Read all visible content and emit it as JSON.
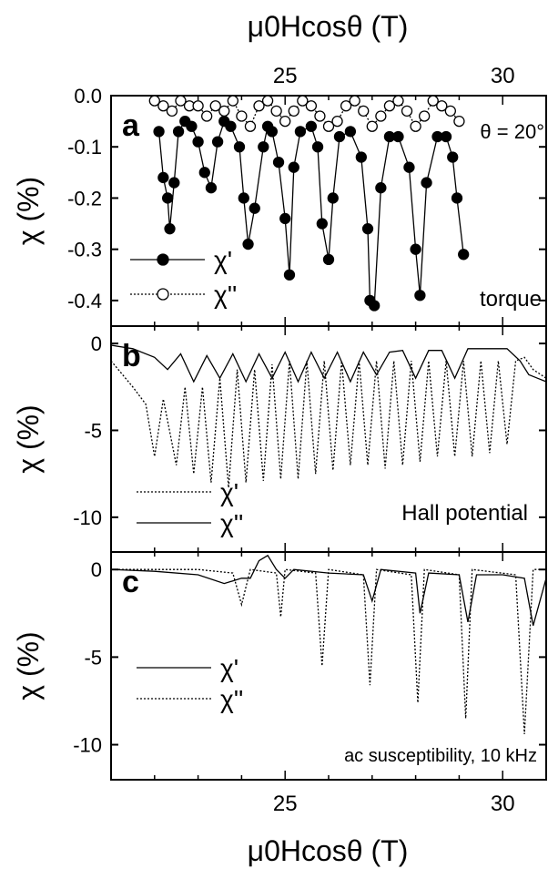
{
  "figure": {
    "top_axis_title": "μ0Hcosθ (T)",
    "bottom_axis_title": "μ0Hcosθ (T)"
  },
  "chart_data": [
    {
      "type": "scatter",
      "panel_label": "a",
      "annotation": "torque",
      "angle_label": "θ = 20°",
      "x_axis_position": "top",
      "xlabel": "μ0Hcosθ (T)",
      "ylabel": "χ (%)",
      "xlim": [
        21,
        31
      ],
      "ylim": [
        -0.45,
        0.0
      ],
      "x_ticks": [
        25,
        30
      ],
      "y_ticks": [
        0.0,
        -0.1,
        -0.2,
        -0.3,
        -0.4
      ],
      "y_tick_labels": [
        "0.0",
        "-0.1",
        "-0.2",
        "-0.3",
        "-0.4"
      ],
      "legend": [
        {
          "label": "χ'",
          "marker": "filled-circle",
          "line": "solid"
        },
        {
          "label": "χ''",
          "marker": "open-circle",
          "line": "dotted"
        }
      ],
      "series": [
        {
          "name": "χ'",
          "x": [
            22.1,
            22.2,
            22.3,
            22.35,
            22.45,
            22.55,
            22.7,
            22.85,
            23.0,
            23.15,
            23.3,
            23.45,
            23.6,
            23.75,
            23.95,
            24.05,
            24.15,
            24.3,
            24.5,
            24.6,
            24.7,
            24.85,
            25.0,
            25.1,
            25.2,
            25.35,
            25.6,
            25.75,
            25.85,
            26.0,
            26.1,
            26.25,
            26.5,
            26.75,
            26.9,
            26.95,
            27.05,
            27.2,
            27.4,
            27.6,
            27.85,
            28.0,
            28.1,
            28.25,
            28.5,
            28.7,
            28.85,
            28.95,
            29.1
          ],
          "y": [
            -0.07,
            -0.16,
            -0.2,
            -0.26,
            -0.17,
            -0.07,
            -0.05,
            -0.06,
            -0.09,
            -0.15,
            -0.18,
            -0.09,
            -0.05,
            -0.06,
            -0.1,
            -0.2,
            -0.29,
            -0.22,
            -0.1,
            -0.06,
            -0.07,
            -0.13,
            -0.24,
            -0.35,
            -0.14,
            -0.07,
            -0.06,
            -0.1,
            -0.25,
            -0.32,
            -0.2,
            -0.08,
            -0.07,
            -0.12,
            -0.26,
            -0.4,
            -0.41,
            -0.18,
            -0.08,
            -0.08,
            -0.14,
            -0.3,
            -0.39,
            -0.17,
            -0.08,
            -0.08,
            -0.12,
            -0.2,
            -0.31
          ]
        },
        {
          "name": "χ''",
          "x": [
            22.0,
            22.2,
            22.4,
            22.6,
            22.8,
            23.0,
            23.2,
            23.4,
            23.6,
            23.8,
            24.0,
            24.2,
            24.4,
            24.6,
            24.8,
            25.0,
            25.2,
            25.4,
            25.6,
            25.8,
            26.0,
            26.2,
            26.4,
            26.6,
            26.8,
            27.0,
            27.2,
            27.4,
            27.6,
            27.8,
            28.0,
            28.2,
            28.4,
            28.6,
            28.8,
            29.0
          ],
          "y": [
            -0.01,
            -0.02,
            -0.03,
            -0.01,
            -0.02,
            -0.02,
            -0.04,
            -0.02,
            -0.03,
            -0.01,
            -0.04,
            -0.06,
            -0.02,
            -0.01,
            -0.03,
            -0.05,
            -0.03,
            -0.01,
            -0.02,
            -0.04,
            -0.06,
            -0.05,
            -0.02,
            -0.01,
            -0.03,
            -0.06,
            -0.04,
            -0.02,
            -0.01,
            -0.03,
            -0.06,
            -0.04,
            -0.01,
            -0.02,
            -0.03,
            -0.05
          ]
        }
      ]
    },
    {
      "type": "line",
      "panel_label": "b",
      "annotation": "Hall potential",
      "xlabel": "",
      "ylabel": "χ (%)",
      "xlim": [
        21,
        31
      ],
      "ylim": [
        -12,
        1
      ],
      "y_ticks": [
        0,
        -5,
        -10
      ],
      "y_tick_labels": [
        "0",
        "-5",
        "-10"
      ],
      "legend": [
        {
          "label": "χ'",
          "line": "dotted"
        },
        {
          "label": "χ''",
          "line": "solid"
        }
      ],
      "series": [
        {
          "name": "χ'",
          "x": [
            21.0,
            21.5,
            21.8,
            22.0,
            22.2,
            22.5,
            22.7,
            22.9,
            23.1,
            23.3,
            23.5,
            23.7,
            23.9,
            24.1,
            24.3,
            24.5,
            24.7,
            24.9,
            25.1,
            25.3,
            25.5,
            25.7,
            25.9,
            26.1,
            26.3,
            26.5,
            26.7,
            26.9,
            27.1,
            27.3,
            27.5,
            27.7,
            27.9,
            28.1,
            28.3,
            28.5,
            28.7,
            28.9,
            29.1,
            29.3,
            29.5,
            29.7,
            29.9,
            30.1,
            30.3,
            30.5,
            30.7,
            31.0
          ],
          "y": [
            -1.0,
            -2.5,
            -3.5,
            -6.5,
            -3.2,
            -7.0,
            -2.5,
            -7.5,
            -2.5,
            -8.0,
            -2.0,
            -8.3,
            -1.5,
            -8.0,
            -1.5,
            -7.9,
            -1.2,
            -7.8,
            -1.0,
            -7.8,
            -1.0,
            -7.5,
            -1.0,
            -7.3,
            -1.0,
            -7.0,
            -1.0,
            -7.0,
            -1.0,
            -7.2,
            -1.0,
            -7.0,
            -1.0,
            -6.8,
            -1.0,
            -6.5,
            -1.0,
            -6.5,
            -1.0,
            -6.5,
            -1.0,
            -6.3,
            -1.0,
            -5.8,
            -1.0,
            -0.8,
            -1.5,
            -2.0
          ]
        },
        {
          "name": "χ''",
          "x": [
            21.0,
            21.5,
            22.0,
            22.3,
            22.6,
            22.9,
            23.2,
            23.5,
            23.8,
            24.1,
            24.4,
            24.7,
            25.0,
            25.3,
            25.6,
            25.9,
            26.2,
            26.5,
            26.8,
            27.1,
            27.4,
            27.7,
            28.0,
            28.3,
            28.6,
            28.9,
            29.2,
            29.5,
            29.8,
            30.1,
            30.4,
            30.6,
            30.8,
            31.0
          ],
          "y": [
            -0.1,
            -0.3,
            -0.8,
            -1.5,
            -0.6,
            -2.2,
            -0.7,
            -2.0,
            -0.6,
            -2.2,
            -0.6,
            -2.0,
            -0.5,
            -2.2,
            -0.5,
            -2.0,
            -0.5,
            -2.2,
            -0.5,
            -1.8,
            -0.5,
            -0.4,
            -2.0,
            -0.4,
            -0.4,
            -2.0,
            -0.3,
            -0.3,
            -0.3,
            -0.3,
            -1.0,
            -1.8,
            -2.0,
            -2.2
          ]
        }
      ]
    },
    {
      "type": "line",
      "panel_label": "c",
      "annotation": "ac susceptibility, 10 kHz",
      "xlabel": "μ0Hcosθ (T)",
      "ylabel": "χ (%)",
      "xlim": [
        21,
        31
      ],
      "ylim": [
        -12,
        1
      ],
      "x_ticks": [
        25,
        30
      ],
      "y_ticks": [
        0,
        -5,
        -10
      ],
      "y_tick_labels": [
        "0",
        "-5",
        "-10"
      ],
      "legend": [
        {
          "label": "χ'",
          "line": "solid"
        },
        {
          "label": "χ''",
          "line": "dotted"
        }
      ],
      "series": [
        {
          "name": "χ'",
          "x": [
            21.0,
            22.0,
            23.0,
            23.6,
            24.0,
            24.2,
            24.4,
            24.6,
            24.8,
            25.0,
            25.2,
            26.0,
            26.8,
            27.0,
            27.2,
            28.0,
            28.1,
            28.3,
            29.0,
            29.2,
            29.4,
            30.0,
            30.5,
            30.7,
            31.0
          ],
          "y": [
            0.0,
            -0.1,
            -0.3,
            -0.8,
            -0.5,
            -0.5,
            0.5,
            0.8,
            0.0,
            -0.5,
            0.0,
            -0.2,
            -0.3,
            -1.8,
            0.0,
            -0.2,
            -2.5,
            -0.2,
            -0.3,
            -3.0,
            -0.3,
            -0.3,
            -0.5,
            -3.2,
            -0.5
          ]
        },
        {
          "name": "χ''",
          "x": [
            21.0,
            22.0,
            23.0,
            23.8,
            24.0,
            24.2,
            24.8,
            24.9,
            25.0,
            25.7,
            25.85,
            26.0,
            26.8,
            26.95,
            27.1,
            27.9,
            28.05,
            28.2,
            29.0,
            29.15,
            29.3,
            30.3,
            30.5,
            30.7,
            31.0
          ],
          "y": [
            0.0,
            0.0,
            0.0,
            -0.2,
            -2.0,
            0.0,
            -0.2,
            -2.7,
            0.0,
            -0.2,
            -5.5,
            0.0,
            -0.3,
            -6.6,
            0.0,
            -0.3,
            -7.6,
            0.0,
            -0.3,
            -8.5,
            0.0,
            -0.3,
            -9.4,
            0.0,
            0.0
          ]
        }
      ]
    }
  ]
}
